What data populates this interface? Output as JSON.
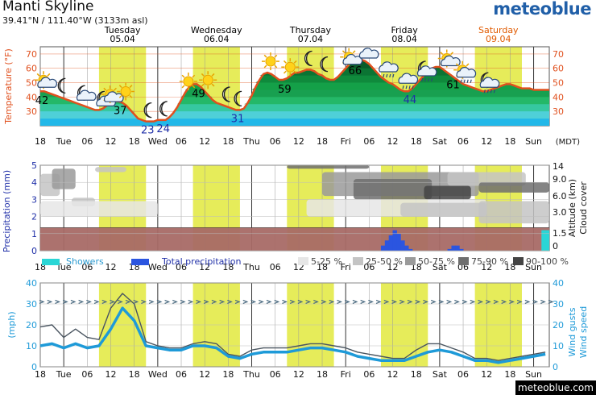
{
  "header": {
    "title": "Manti Skyline",
    "coords": "39.41°N / 111.40°W (3133m asl)",
    "logo": "meteoblue",
    "footer": "meteoblue.com"
  },
  "days": [
    {
      "name": "Tuesday",
      "date": "05.04",
      "color": "#000000"
    },
    {
      "name": "Wednesday",
      "date": "06.04",
      "color": "#000000"
    },
    {
      "name": "Thursday",
      "date": "07.04",
      "color": "#000000"
    },
    {
      "name": "Friday",
      "date": "08.04",
      "color": "#000000"
    },
    {
      "name": "Saturday",
      "date": "09.04",
      "color": "#e05a00"
    }
  ],
  "x_ticks": [
    "18",
    "Tue",
    "06",
    "12",
    "18",
    "Wed",
    "06",
    "12",
    "18",
    "Thu",
    "06",
    "12",
    "18",
    "Fri",
    "06",
    "12",
    "18",
    "Sat",
    "06",
    "12",
    "18",
    "Sun"
  ],
  "timezone": "(MDT)",
  "colors": {
    "daylight": "#e6ec5a",
    "temp_line": "#e0501e",
    "precip": "#2b55e0",
    "showers": "#2ad6d6",
    "wind": "#1e9ad8",
    "gusts": "#4a5560",
    "accent": "#205fa8"
  },
  "chart_data": [
    {
      "type": "area",
      "name": "temperature",
      "ylabel": "Temperature (°F)",
      "yticks": [
        30,
        40,
        50,
        60,
        70
      ],
      "ylim": [
        20,
        75
      ],
      "x": [
        0,
        1,
        2,
        3,
        4,
        5,
        6,
        7,
        8,
        9,
        10,
        11,
        12,
        13,
        14,
        15,
        16,
        17,
        18,
        19,
        20,
        21,
        22,
        23,
        24,
        25,
        26,
        27,
        28,
        29,
        30,
        31,
        32,
        33,
        34,
        35,
        36,
        37,
        38,
        39,
        40,
        41,
        42,
        43,
        44,
        45,
        46,
        47,
        48,
        49,
        50,
        51,
        52,
        53,
        54,
        55,
        56,
        57,
        58,
        59,
        60,
        61,
        62,
        63,
        64,
        65,
        66,
        67,
        68,
        69,
        70,
        71,
        72,
        73,
        74,
        75,
        76,
        77,
        78,
        79,
        80,
        81,
        82,
        83,
        84,
        85,
        86,
        87,
        88,
        89,
        90,
        91,
        92,
        93,
        94,
        95,
        96,
        97,
        98,
        99,
        100,
        101,
        102,
        103,
        104,
        105,
        106,
        107,
        108,
        109,
        110,
        111,
        112,
        113,
        114,
        115,
        116,
        117,
        118,
        119,
        120,
        121,
        122,
        123,
        124,
        125,
        126,
        127,
        128,
        129,
        130
      ],
      "values": [
        44,
        44,
        43,
        42,
        41,
        40,
        39,
        38,
        37,
        36,
        35,
        34,
        33,
        32,
        31,
        31,
        32,
        34,
        36,
        37,
        37,
        36,
        34,
        31,
        28,
        25,
        24,
        23,
        23,
        23,
        24,
        24,
        24,
        26,
        29,
        33,
        38,
        43,
        47,
        49,
        49,
        47,
        44,
        41,
        38,
        36,
        35,
        34,
        33,
        32,
        31,
        31,
        32,
        36,
        41,
        47,
        52,
        56,
        57,
        56,
        54,
        52,
        52,
        53,
        55,
        57,
        57,
        58,
        59,
        59,
        58,
        56,
        55,
        53,
        52,
        52,
        54,
        57,
        60,
        63,
        65,
        66,
        66,
        65,
        63,
        60,
        57,
        54,
        52,
        50,
        49,
        47,
        45,
        44,
        44,
        46,
        49,
        52,
        55,
        58,
        60,
        61,
        61,
        59,
        57,
        55,
        53,
        51,
        49,
        48,
        47,
        46,
        45,
        44,
        44,
        45,
        46,
        47,
        48,
        49,
        49,
        48,
        47,
        46,
        46,
        46,
        45,
        45,
        45,
        45,
        45
      ],
      "labels": [
        {
          "text": "42",
          "x": 0,
          "color": "#000000"
        },
        {
          "text": "37",
          "x": 20,
          "color": "#000000"
        },
        {
          "text": "23",
          "x": 27,
          "color": "#1f2fa8"
        },
        {
          "text": "24",
          "x": 31,
          "color": "#1f2fa8"
        },
        {
          "text": "49",
          "x": 40,
          "color": "#000000"
        },
        {
          "text": "31",
          "x": 50,
          "color": "#1f2fa8"
        },
        {
          "text": "59",
          "x": 62,
          "color": "#000000"
        },
        {
          "text": "66",
          "x": 80,
          "color": "#000000"
        },
        {
          "text": "44",
          "x": 94,
          "color": "#1f2fa8"
        },
        {
          "text": "61",
          "x": 105,
          "color": "#000000"
        }
      ],
      "icons": [
        {
          "name": "sun-cloud-icon",
          "x": 0
        },
        {
          "name": "moon-icon",
          "x": 5
        },
        {
          "name": "moon-cloud-icon",
          "x": 10
        },
        {
          "name": "moon-cloud-icon",
          "x": 15
        },
        {
          "name": "sun-cloud-icon",
          "x": 17
        },
        {
          "name": "sun-icon",
          "x": 21
        },
        {
          "name": "moon-icon",
          "x": 27
        },
        {
          "name": "moon-icon",
          "x": 31
        },
        {
          "name": "sun-icon",
          "x": 37
        },
        {
          "name": "sun-icon",
          "x": 42
        },
        {
          "name": "moon-icon",
          "x": 47
        },
        {
          "name": "moon-icon",
          "x": 50
        },
        {
          "name": "sun-icon",
          "x": 58
        },
        {
          "name": "sun-icon",
          "x": 63
        },
        {
          "name": "moon-icon",
          "x": 68
        },
        {
          "name": "moon-icon",
          "x": 72
        },
        {
          "name": "sun-cloud-icon",
          "x": 78
        },
        {
          "name": "cloud-icon",
          "x": 83
        },
        {
          "name": "rain-cloud-icon",
          "x": 88
        },
        {
          "name": "rain-cloud-icon",
          "x": 93
        },
        {
          "name": "moon-rain-icon",
          "x": 97
        },
        {
          "name": "sun-cloud-icon",
          "x": 103
        },
        {
          "name": "sun-rain-icon",
          "x": 107
        },
        {
          "name": "moon-rain-icon",
          "x": 113
        }
      ]
    },
    {
      "type": "bar",
      "name": "precipitation",
      "ylabel": "Precipitation (mm)",
      "yticks": [
        0,
        1,
        2,
        3,
        4,
        5
      ],
      "ylim": [
        0,
        5
      ],
      "right_ticks": [
        "14",
        "9.0",
        "6.0",
        "3.0",
        "1.5",
        "0"
      ],
      "right_label_1": "Altitude (km)",
      "right_label_2": "Cloud cover",
      "precip_x": [
        87,
        88,
        89,
        90,
        91,
        92,
        93,
        94,
        104,
        105,
        106,
        107
      ],
      "precip_values": [
        0.3,
        0.6,
        0.9,
        1.2,
        1.0,
        0.6,
        0.3,
        0.1,
        0.1,
        0.3,
        0.3,
        0.1
      ],
      "legend": [
        {
          "label": "Showers",
          "color": "#2ad6d6"
        },
        {
          "label": "Total precipitation",
          "color": "#2b55e0"
        },
        {
          "label": "5-25 %",
          "color": "#e6e6e6"
        },
        {
          "label": "25-50 %",
          "color": "#c4c4c4"
        },
        {
          "label": "50-75 %",
          "color": "#9a9a9a"
        },
        {
          "label": "75-90 %",
          "color": "#6e6e6e"
        },
        {
          "label": "90-100 %",
          "color": "#444444"
        }
      ]
    },
    {
      "type": "line",
      "name": "wind",
      "ylabel": "(mph)",
      "yticks": [
        0,
        10,
        20,
        30,
        40
      ],
      "ylim": [
        0,
        40
      ],
      "right_label_1": "Wind gusts",
      "right_label_2": "Wind speed",
      "x": [
        0,
        3,
        6,
        9,
        12,
        15,
        18,
        21,
        24,
        27,
        30,
        33,
        36,
        39,
        42,
        45,
        48,
        51,
        54,
        57,
        60,
        63,
        66,
        69,
        72,
        75,
        78,
        81,
        84,
        87,
        90,
        93,
        96,
        99,
        102,
        105,
        108,
        111,
        114,
        117,
        120,
        123,
        126,
        129
      ],
      "series": [
        {
          "name": "Wind speed",
          "values": [
            10,
            11,
            9,
            11,
            9,
            10,
            18,
            28,
            22,
            10,
            9,
            8,
            8,
            10,
            10,
            9,
            5,
            4,
            6,
            7,
            7,
            7,
            8,
            9,
            9,
            8,
            7,
            5,
            4,
            3,
            3,
            3,
            5,
            7,
            8,
            7,
            5,
            3,
            3,
            2,
            3,
            4,
            5,
            6
          ]
        },
        {
          "name": "Wind gusts",
          "values": [
            19,
            20,
            14,
            18,
            14,
            13,
            28,
            35,
            30,
            12,
            10,
            9,
            9,
            11,
            12,
            11,
            6,
            5,
            8,
            9,
            9,
            9,
            10,
            11,
            11,
            10,
            9,
            7,
            6,
            5,
            4,
            4,
            8,
            11,
            11,
            9,
            7,
            4,
            4,
            3,
            4,
            5,
            6,
            7
          ]
        }
      ]
    }
  ]
}
